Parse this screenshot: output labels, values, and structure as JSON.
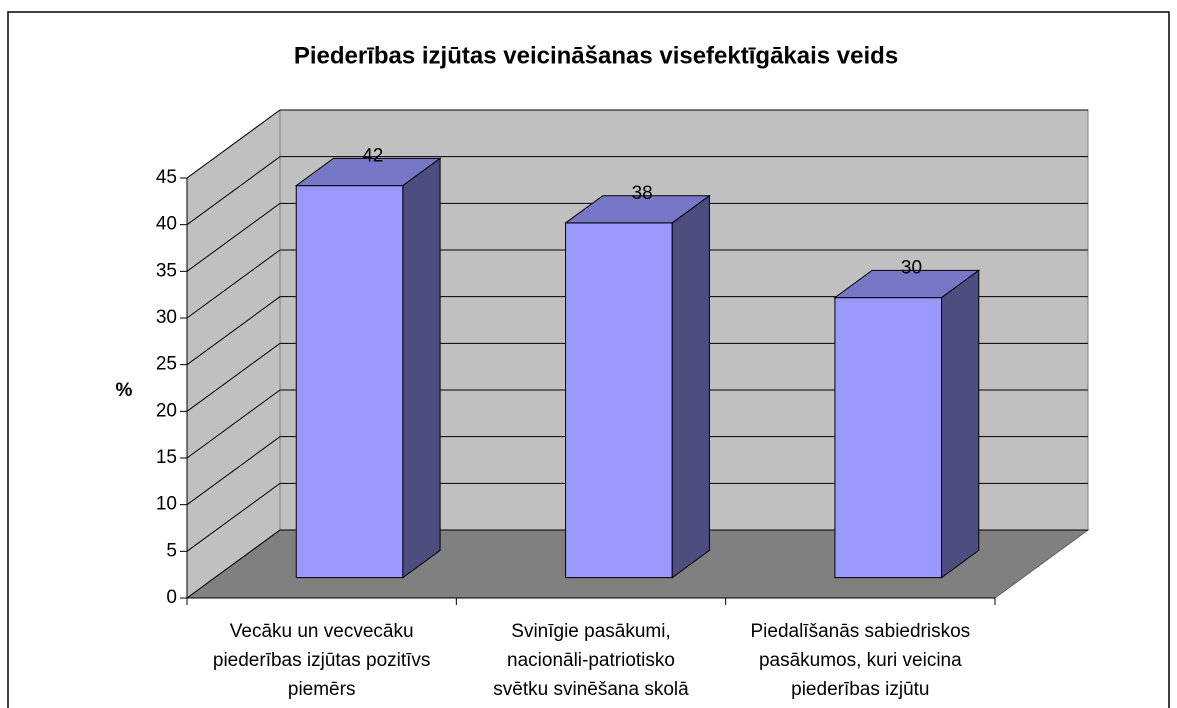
{
  "chart_data": {
    "type": "bar3d",
    "title": "Piederības izjūtas veicināšanas visefektīgākais veids",
    "y_label": "%",
    "categories": [
      "Vecāku un vecvecāku\npiederības izjūtas pozitīvs\npiemērs",
      "Svinīgie pasākumi,\nnacionāli-patriotisko\nsvētku svinēšana skolā",
      "Piedalīšanās sabiedriskos\npasākumos, kuri veicina\npiederības izjūtu"
    ],
    "values": [
      42,
      38,
      30
    ],
    "color": "#9999ff",
    "ylim": [
      0,
      45
    ],
    "yticks": [
      0,
      5,
      10,
      15,
      20,
      25,
      30,
      35,
      40,
      45
    ],
    "grid": true
  }
}
